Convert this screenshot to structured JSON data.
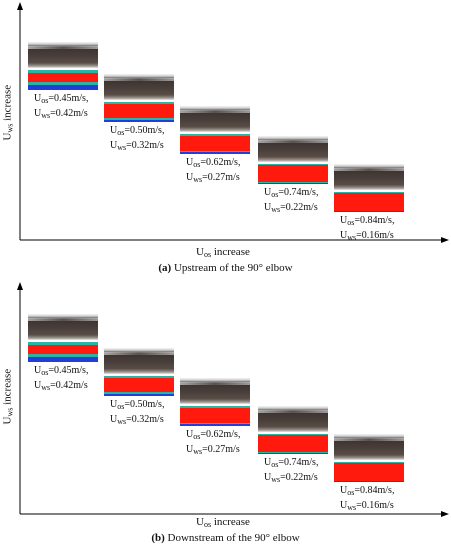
{
  "panels": [
    {
      "id": "a",
      "ylabel_main": "U",
      "ylabel_sub": "ws",
      "ylabel_tail": " increase",
      "xlabel_main": "U",
      "xlabel_sub": "os",
      "xlabel_tail": " increase",
      "caption_letter": "(a)",
      "caption_text": " Upstream of the 90° elbow",
      "samples": [
        {
          "uos": "=0.45m/s",
          "uws": "=0.42m/s",
          "profile": "wavy"
        },
        {
          "uos": "=0.50m/s",
          "uws": "=0.32m/s",
          "profile": "thick"
        },
        {
          "uos": "=0.62m/s",
          "uws": "=0.27m/s",
          "profile": "medium"
        },
        {
          "uos": "=0.74m/s",
          "uws": "=0.22m/s",
          "profile": "thin"
        },
        {
          "uos": "=0.84m/s",
          "uws": "=0.16m/s",
          "profile": "thinnest"
        }
      ]
    },
    {
      "id": "b",
      "ylabel_main": "U",
      "ylabel_sub": "ws",
      "ylabel_tail": " increase",
      "xlabel_main": "U",
      "xlabel_sub": "os",
      "xlabel_tail": " increase",
      "caption_letter": "(b)",
      "caption_text": " Downstream of the 90° elbow",
      "samples": [
        {
          "uos": "=0.45m/s",
          "uws": "=0.42m/s",
          "profile": "wavy"
        },
        {
          "uos": "=0.50m/s",
          "uws": "=0.32m/s",
          "profile": "thick"
        },
        {
          "uos": "=0.62m/s",
          "uws": "=0.27m/s",
          "profile": "medium"
        },
        {
          "uos": "=0.74m/s",
          "uws": "=0.22m/s",
          "profile": "thin"
        },
        {
          "uos": "=0.84m/s",
          "uws": "=0.16m/s",
          "profile": "thinnest"
        }
      ]
    }
  ],
  "symbols": {
    "os_sub": "os",
    "ws_sub": "ws",
    "u": "U"
  },
  "colors": {
    "oil": "#ff1a0d",
    "water": "#1f3fd6",
    "interface": "#2bb3a5",
    "axis": "#000000"
  }
}
